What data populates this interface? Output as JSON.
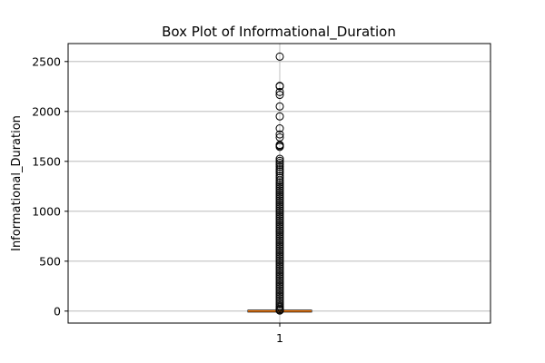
{
  "chart_data": {
    "type": "box",
    "title": "Box Plot of Informational_Duration",
    "xlabel": "",
    "ylabel": "Informational_Duration",
    "categories": [
      "1"
    ],
    "ylim": [
      -120,
      2680
    ],
    "yticks": [
      0,
      500,
      1000,
      1500,
      2000,
      2500
    ],
    "grid": true,
    "box": {
      "whislo": 0,
      "q1": 0,
      "median": 0,
      "q3": 0,
      "whishi": 0
    },
    "fliers": [
      2549,
      2256,
      2252,
      2195,
      2166,
      2050,
      1950,
      1830,
      1770,
      1740,
      1665,
      1655,
      1645,
      1525,
      1505,
      1485,
      1465,
      1445,
      1420,
      1400,
      1380,
      1355,
      1335,
      1310,
      1290,
      1270,
      1250,
      1230,
      1210,
      1190,
      1170,
      1150,
      1130,
      1110,
      1090,
      1070,
      1050,
      1030,
      1010,
      990,
      970,
      950,
      930,
      910,
      890,
      870,
      850,
      830,
      810,
      790,
      770,
      750,
      730,
      710,
      690,
      670,
      650,
      630,
      610,
      590,
      570,
      550,
      530,
      510,
      490,
      470,
      450,
      430,
      410,
      390,
      370,
      350,
      330,
      310,
      290,
      270,
      250,
      230,
      210,
      190,
      170,
      150,
      130,
      110,
      90,
      70,
      50,
      35,
      20,
      10,
      5
    ],
    "colors": {
      "box": "#000000",
      "median": "#ff7f0e",
      "flier": "#000000",
      "grid": "#b0b0b0"
    }
  }
}
